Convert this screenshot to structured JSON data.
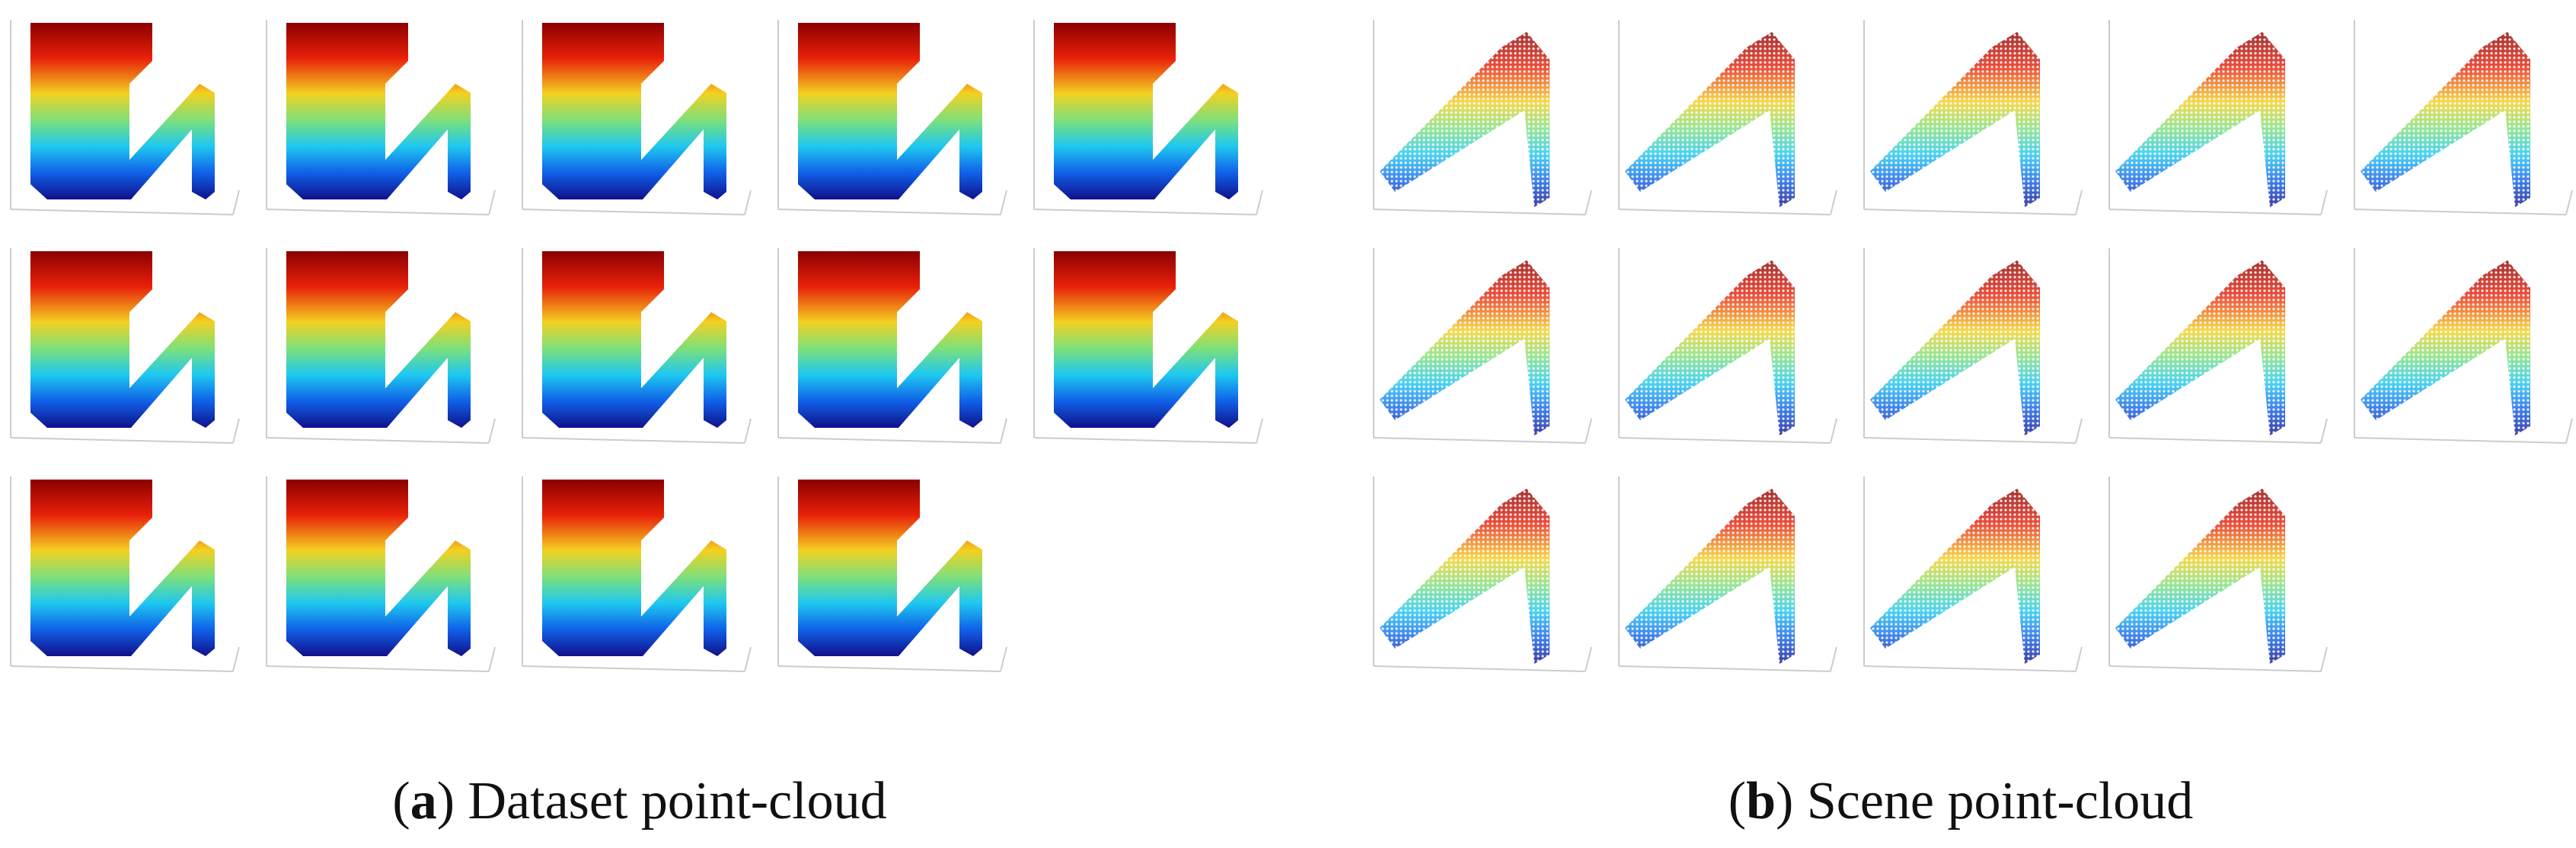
{
  "captions": [
    {
      "parts": [
        "(",
        "a",
        ") Dataset point-cloud"
      ]
    },
    {
      "parts": [
        "(",
        "b",
        ") Scene point-cloud"
      ]
    }
  ]
}
